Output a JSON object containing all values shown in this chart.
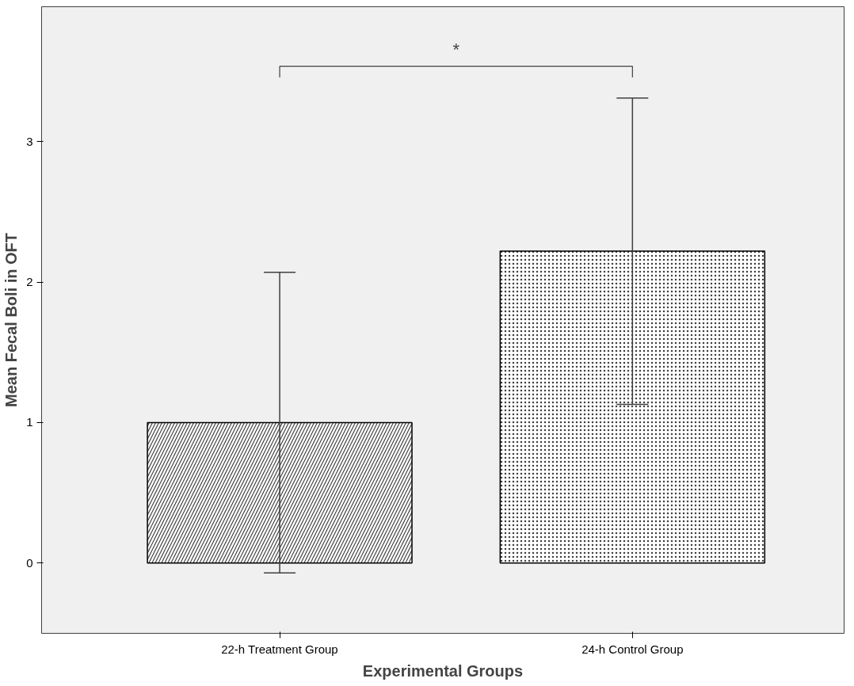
{
  "chart_data": {
    "type": "bar",
    "xlabel": "Experimental Groups",
    "ylabel": "Mean Fecal Boli in OFT",
    "categories": [
      "22-h Treatment Group",
      "24-h Control Group"
    ],
    "values": [
      1.0,
      2.22
    ],
    "errors": [
      1.07,
      1.09
    ],
    "colors": [
      "#ffffff",
      "#ffffff"
    ],
    "ylim": [
      -0.5,
      3.96
    ],
    "yticks": [
      0,
      1,
      2,
      3
    ],
    "grid": false,
    "annotations": [
      "*"
    ]
  }
}
